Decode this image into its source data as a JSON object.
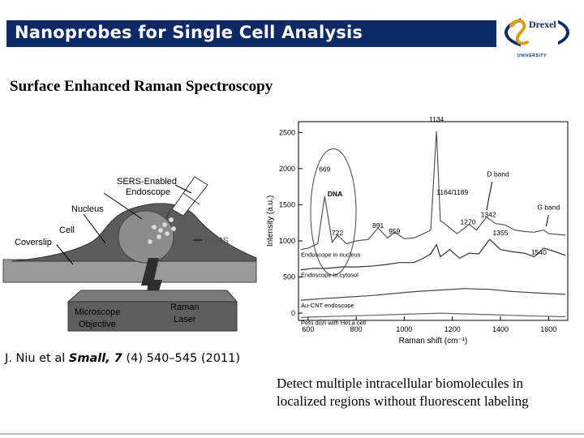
{
  "slide": {
    "title": "Nanoprobes for Single Cell Analysis",
    "logo_name": "Drexel",
    "logo_sub": "UNIVERSITY",
    "subtitle": "Surface Enhanced Raman Spectroscopy",
    "citation_prefix": "J. Niu et al ",
    "citation_journal": "Small, 7",
    "citation_rest": " (4) 540–545 (2011)",
    "caption_line1": "Detect multiple intracellular biomolecules in",
    "caption_line2": "localized regions without fluorescent labeling",
    "colors": {
      "banner": "#0d2a66",
      "cell": "#5c5c5c",
      "objective": "#5e5e5e"
    }
  },
  "schematic": {
    "labels": {
      "sers_endoscope_1": "SERS-Enabled",
      "sers_endoscope_2": "Endoscope",
      "nucleus": "Nucleus",
      "cell": "Cell",
      "coverslip": "Coverslip",
      "sers": "SERS",
      "objective_1": "Microscope",
      "objective_2": "Objective",
      "laser_1": "Raman",
      "laser_2": "Laser"
    }
  },
  "chart_data": {
    "type": "line",
    "xlabel": "Raman shift (cm⁻¹)",
    "ylabel": "Intensity (a.u.)",
    "xlim": [
      560,
      1680
    ],
    "ylim": [
      -100,
      2650
    ],
    "xticks": [
      600,
      800,
      1000,
      1200,
      1400,
      1600
    ],
    "yticks": [
      0,
      500,
      1000,
      1500,
      2000,
      2500
    ],
    "series": [
      {
        "name": "Endoscope in nucleus",
        "x": [
          570,
          600,
          640,
          669,
          700,
          722,
          760,
          800,
          850,
          891,
          930,
          959,
          1000,
          1040,
          1080,
          1110,
          1134,
          1150,
          1164,
          1189,
          1220,
          1270,
          1300,
          1342,
          1380,
          1420,
          1460,
          1500,
          1540,
          1580,
          1600,
          1640,
          1670
        ],
        "y": [
          880,
          900,
          960,
          1620,
          980,
          1080,
          960,
          1000,
          1020,
          1180,
          1040,
          1120,
          1030,
          1040,
          1100,
          1150,
          2520,
          1280,
          1250,
          1180,
          1100,
          1230,
          1150,
          1330,
          1240,
          1220,
          1150,
          1130,
          1120,
          1150,
          1100,
          1090,
          1080
        ]
      },
      {
        "name": "Endoscope in cytosol",
        "x": [
          570,
          620,
          680,
          740,
          800,
          860,
          920,
          980,
          1040,
          1080,
          1110,
          1134,
          1150,
          1189,
          1230,
          1270,
          1310,
          1355,
          1400,
          1450,
          1500,
          1540,
          1580,
          1620,
          1670
        ],
        "y": [
          600,
          620,
          620,
          640,
          640,
          650,
          670,
          700,
          700,
          760,
          820,
          950,
          780,
          880,
          760,
          830,
          820,
          1020,
          880,
          850,
          830,
          780,
          900,
          860,
          800
        ]
      },
      {
        "name": "Au-CNT endoscope",
        "x": [
          570,
          650,
          750,
          850,
          950,
          1050,
          1150,
          1250,
          1350,
          1450,
          1550,
          1670
        ],
        "y": [
          180,
          200,
          220,
          240,
          270,
          300,
          320,
          340,
          330,
          300,
          280,
          260
        ]
      },
      {
        "name": "Petri dish with HeLa cell",
        "x": [
          570,
          650,
          750,
          850,
          950,
          1050,
          1150,
          1250,
          1350,
          1450,
          1550,
          1670
        ],
        "y": [
          -60,
          -50,
          -40,
          -30,
          -20,
          -10,
          0,
          -10,
          -20,
          -30,
          -40,
          -50
        ]
      }
    ],
    "peak_labels": [
      {
        "text": "1134",
        "x": 1134,
        "y": 2650
      },
      {
        "text": "669",
        "x": 669,
        "y": 1960
      },
      {
        "text": "DNA",
        "x": 712,
        "y": 1620
      },
      {
        "text": "1164/1189",
        "x": 1200,
        "y": 1640
      },
      {
        "text": "891",
        "x": 891,
        "y": 1180
      },
      {
        "text": "959",
        "x": 959,
        "y": 1100
      },
      {
        "text": "722",
        "x": 722,
        "y": 1080
      },
      {
        "text": "1270",
        "x": 1265,
        "y": 1230
      },
      {
        "text": "1342",
        "x": 1350,
        "y": 1330
      },
      {
        "text": "1355",
        "x": 1400,
        "y": 1080
      },
      {
        "text": "1540",
        "x": 1560,
        "y": 810
      },
      {
        "text": "D band",
        "x": 1390,
        "y": 1890
      },
      {
        "text": "G band",
        "x": 1600,
        "y": 1430
      }
    ]
  }
}
